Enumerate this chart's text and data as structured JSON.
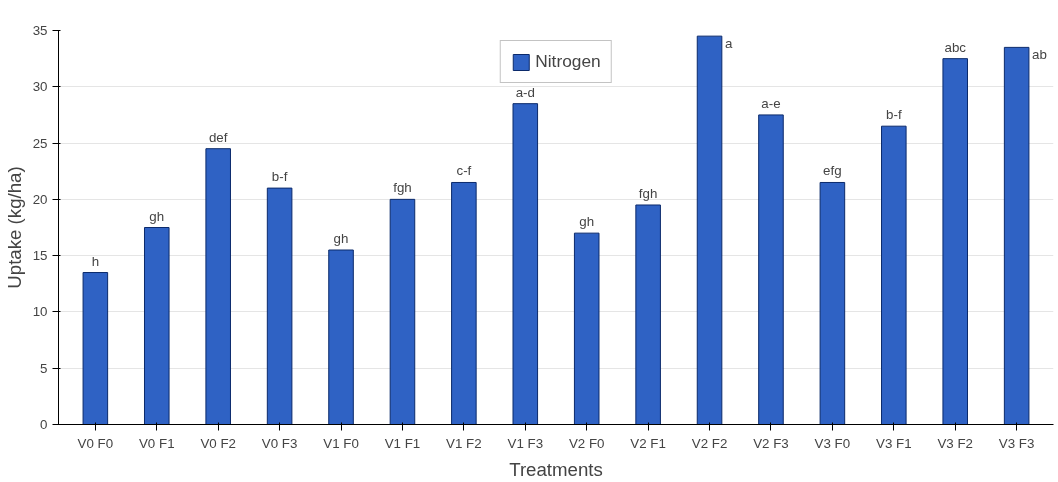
{
  "chart_data": {
    "type": "bar",
    "xlabel": "Treatments",
    "ylabel": "Uptake (kg/ha)",
    "categories": [
      "V0 F0",
      "V0 F1",
      "V0 F2",
      "V0 F3",
      "V1 F0",
      "V1 F1",
      "V1 F2",
      "V1 F3",
      "V2 F0",
      "V2 F1",
      "V2 F2",
      "V2 F3",
      "V3 F0",
      "V3 F1",
      "V3 F2",
      "V3 F3"
    ],
    "series": [
      {
        "name": "Nitrogen",
        "color": "#2f62c4",
        "values": [
          13.5,
          17.5,
          24.5,
          21,
          15.5,
          20,
          21.5,
          28.5,
          17,
          19.5,
          34.5,
          27.5,
          21.5,
          26.5,
          32.5,
          33.5
        ]
      }
    ],
    "ylim": [
      0,
      35
    ],
    "yticks": [
      0,
      5,
      10,
      15,
      20,
      25,
      30,
      35
    ],
    "grid": "y",
    "legend": "top",
    "annotations": [
      {
        "text": "h",
        "x": "V0 F0",
        "y": 13.5
      },
      {
        "text": "gh",
        "x": "V0 F1",
        "y": 17.5
      },
      {
        "text": "def",
        "x": "V0 F2",
        "y": 24.5
      },
      {
        "text": "b-f",
        "x": "V0 F3",
        "y": 21
      },
      {
        "text": "gh",
        "x": "V1 F0",
        "y": 15.5
      },
      {
        "text": "fgh",
        "x": "V1 F1",
        "y": 20
      },
      {
        "text": "c-f",
        "x": "V1 F2",
        "y": 21.5
      },
      {
        "text": "a-d",
        "x": "V1 F3",
        "y": 28.5
      },
      {
        "text": "gh",
        "x": "V2 F0",
        "y": 17
      },
      {
        "text": "fgh",
        "x": "V2 F1",
        "y": 19.5
      },
      {
        "text": "a",
        "x": "V2 F2",
        "y": 34.5
      },
      {
        "text": "a-e",
        "x": "V2 F3",
        "y": 27.5
      },
      {
        "text": "efg",
        "x": "V3 F0",
        "y": 21.5
      },
      {
        "text": "b-f",
        "x": "V3 F1",
        "y": 26.5
      },
      {
        "text": "abc",
        "x": "V3 F2",
        "y": 32.5
      },
      {
        "text": "ab",
        "x": "V3 F3",
        "y": 33.5
      }
    ]
  }
}
